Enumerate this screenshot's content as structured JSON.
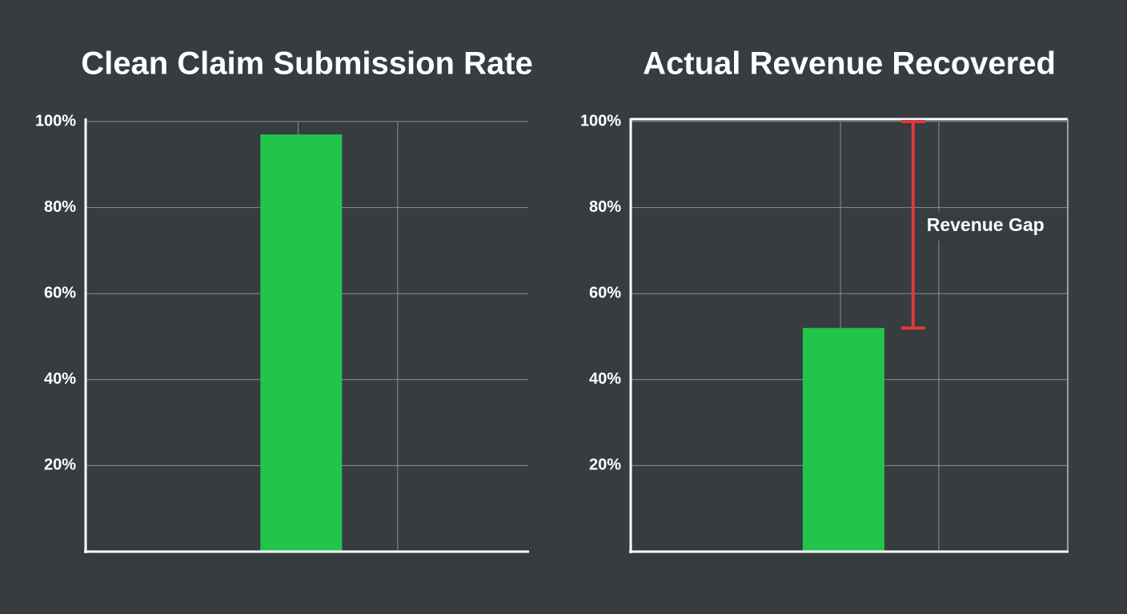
{
  "chart_data": [
    {
      "type": "bar",
      "title": "Clean Claim Submission Rate",
      "categories": [
        null
      ],
      "values": [
        97
      ],
      "color": "#22c54b",
      "ylim": [
        0,
        100
      ],
      "yticks": [
        {
          "value": 20,
          "label": "20%"
        },
        {
          "value": 40,
          "label": "40%"
        },
        {
          "value": 60,
          "label": "60%"
        },
        {
          "value": 80,
          "label": "80%"
        },
        {
          "value": 100,
          "label": "100%"
        }
      ],
      "grid": true
    },
    {
      "type": "bar",
      "title": "Actual Revenue Recovered",
      "categories": [
        null
      ],
      "values": [
        52
      ],
      "color": "#22c54b",
      "ylim": [
        0,
        100
      ],
      "yticks": [
        {
          "value": 20,
          "label": "20%"
        },
        {
          "value": 40,
          "label": "40%"
        },
        {
          "value": 60,
          "label": "60%"
        },
        {
          "value": 80,
          "label": "80%"
        },
        {
          "value": 100,
          "label": "100%"
        }
      ],
      "grid": true,
      "annotation": {
        "text": "Revenue Gap",
        "from": 52,
        "to": 100,
        "color": "#e0393b"
      }
    }
  ]
}
